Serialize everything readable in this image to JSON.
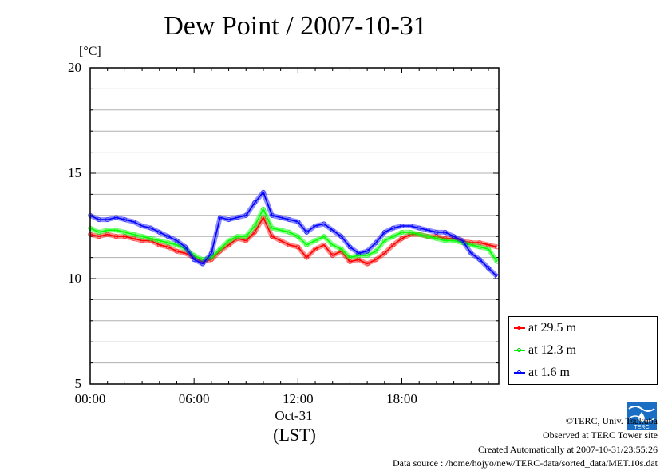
{
  "chart_data": {
    "type": "line",
    "title": "Dew Point / 2007-10-31",
    "ylabel": "[°C]",
    "xlabel": "(LST)",
    "x_date_label": "Oct-31",
    "x_range_hours": [
      0,
      23.6
    ],
    "ylim": [
      5,
      20
    ],
    "y_ticks": [
      5,
      10,
      15,
      20
    ],
    "x_ticks": [
      {
        "hour": 0,
        "label": "00:00"
      },
      {
        "hour": 6,
        "label": "06:00"
      },
      {
        "hour": 12,
        "label": "12:00"
      },
      {
        "hour": 18,
        "label": "18:00"
      }
    ],
    "grid": true,
    "legend_position": "right-bottom",
    "x": [
      0,
      0.5,
      1,
      1.5,
      2,
      2.5,
      3,
      3.5,
      4,
      4.5,
      5,
      5.5,
      6,
      6.5,
      7,
      7.5,
      8,
      8.5,
      9,
      9.5,
      10,
      10.5,
      11,
      11.5,
      12,
      12.5,
      13,
      13.5,
      14,
      14.5,
      15,
      15.5,
      16,
      16.5,
      17,
      17.5,
      18,
      18.5,
      19,
      19.5,
      20,
      20.5,
      21,
      21.5,
      22,
      22.5,
      23,
      23.5
    ],
    "series": [
      {
        "name": "at 29.5 m",
        "color": "#ff0000",
        "values": [
          12.1,
          12.0,
          12.1,
          12.0,
          12.0,
          11.9,
          11.8,
          11.8,
          11.6,
          11.5,
          11.3,
          11.2,
          11.0,
          10.8,
          10.9,
          11.3,
          11.6,
          11.9,
          11.8,
          12.2,
          12.9,
          12.0,
          11.8,
          11.6,
          11.5,
          11.0,
          11.4,
          11.6,
          11.1,
          11.3,
          10.8,
          10.9,
          10.7,
          10.9,
          11.2,
          11.6,
          11.9,
          12.1,
          12.1,
          12.0,
          12.0,
          11.9,
          11.9,
          11.8,
          11.7,
          11.7,
          11.6,
          11.5
        ]
      },
      {
        "name": "at 12.3 m",
        "color": "#00ff00",
        "values": [
          12.4,
          12.2,
          12.3,
          12.3,
          12.2,
          12.1,
          12.0,
          11.9,
          11.8,
          11.7,
          11.6,
          11.4,
          11.1,
          10.9,
          11.0,
          11.4,
          11.8,
          12.0,
          12.0,
          12.5,
          13.3,
          12.4,
          12.3,
          12.2,
          12.0,
          11.6,
          11.8,
          12.0,
          11.6,
          11.4,
          11.0,
          11.1,
          11.1,
          11.3,
          11.8,
          12.0,
          12.2,
          12.2,
          12.1,
          12.0,
          11.9,
          11.8,
          11.8,
          11.7,
          11.6,
          11.5,
          11.4,
          10.8
        ]
      },
      {
        "name": "at 1.6 m",
        "color": "#0000ff",
        "values": [
          13.0,
          12.8,
          12.8,
          12.9,
          12.8,
          12.7,
          12.5,
          12.4,
          12.2,
          12.0,
          11.8,
          11.5,
          10.9,
          10.7,
          11.2,
          12.9,
          12.8,
          12.9,
          13.0,
          13.6,
          14.1,
          13.0,
          12.9,
          12.8,
          12.7,
          12.2,
          12.5,
          12.6,
          12.3,
          12.0,
          11.5,
          11.2,
          11.3,
          11.7,
          12.2,
          12.4,
          12.5,
          12.5,
          12.4,
          12.3,
          12.2,
          12.2,
          12.0,
          11.8,
          11.2,
          10.9,
          10.5,
          10.1
        ]
      }
    ]
  },
  "footer": {
    "copyright": "©TERC, Univ. Tsukuba",
    "observed": "Observed at TERC Tower site",
    "created": "Created Automatically at 2007-10-31/23:55:26",
    "source": "Data source : /home/hojyo/new/TERC-data/sorted_data/MET.10s.dat"
  },
  "logo": {
    "text": "TERC",
    "color": "#1a6fc4"
  }
}
